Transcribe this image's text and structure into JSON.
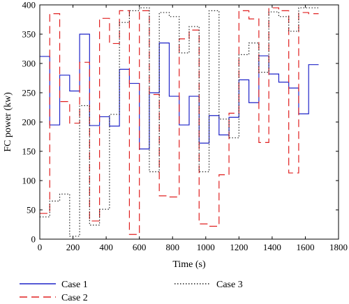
{
  "chart_data": {
    "type": "line",
    "title": "",
    "xlabel": "Time (s)",
    "ylabel": "FC power (kw)",
    "xlim": [
      0,
      1800
    ],
    "ylim": [
      0,
      400
    ],
    "xticks": [
      0,
      200,
      400,
      600,
      800,
      1000,
      1200,
      1400,
      1600,
      1800
    ],
    "yticks": [
      0,
      50,
      100,
      150,
      200,
      250,
      300,
      350,
      400
    ],
    "grid": false,
    "legend_position": "bottom",
    "series": [
      {
        "name": "Case 1",
        "color": "#1f24c8",
        "style": "solid",
        "x": [
          0,
          60,
          60,
          120,
          120,
          180,
          180,
          240,
          240,
          300,
          300,
          360,
          360,
          420,
          420,
          480,
          480,
          540,
          540,
          600,
          600,
          660,
          660,
          720,
          720,
          780,
          780,
          840,
          840,
          900,
          900,
          960,
          960,
          1020,
          1020,
          1080,
          1080,
          1140,
          1140,
          1200,
          1200,
          1260,
          1260,
          1320,
          1320,
          1380,
          1380,
          1440,
          1440,
          1500,
          1500,
          1560,
          1560,
          1620,
          1620,
          1680
        ],
        "y": [
          312,
          312,
          195,
          195,
          280,
          280,
          253,
          253,
          350,
          350,
          194,
          194,
          209,
          209,
          193,
          193,
          290,
          290,
          266,
          266,
          154,
          154,
          250,
          250,
          335,
          335,
          244,
          244,
          195,
          195,
          244,
          244,
          164,
          164,
          211,
          211,
          178,
          178,
          208,
          208,
          272,
          272,
          233,
          233,
          313,
          313,
          282,
          282,
          268,
          268,
          258,
          258,
          214,
          214,
          298,
          298
        ]
      },
      {
        "name": "Case 2",
        "color": "#e02020",
        "style": "dashed",
        "x": [
          0,
          60,
          60,
          120,
          120,
          180,
          180,
          240,
          240,
          300,
          300,
          360,
          360,
          420,
          420,
          480,
          480,
          540,
          540,
          600,
          600,
          660,
          660,
          720,
          720,
          780,
          780,
          840,
          840,
          900,
          900,
          960,
          960,
          1020,
          1020,
          1080,
          1080,
          1140,
          1140,
          1200,
          1200,
          1260,
          1260,
          1320,
          1320,
          1380,
          1380,
          1440,
          1440,
          1500,
          1500,
          1560,
          1560,
          1620,
          1620,
          1680
        ],
        "y": [
          44,
          44,
          385,
          385,
          235,
          235,
          198,
          198,
          302,
          302,
          31,
          31,
          377,
          377,
          334,
          334,
          390,
          390,
          8,
          8,
          390,
          390,
          247,
          247,
          74,
          74,
          72,
          72,
          342,
          342,
          357,
          357,
          26,
          26,
          22,
          22,
          110,
          110,
          215,
          215,
          390,
          390,
          376,
          376,
          165,
          165,
          395,
          395,
          390,
          390,
          113,
          113,
          387,
          387,
          385,
          385
        ]
      },
      {
        "name": "Case 3",
        "color": "#222222",
        "style": "dotted",
        "x": [
          0,
          60,
          60,
          120,
          120,
          180,
          180,
          240,
          240,
          300,
          300,
          360,
          360,
          420,
          420,
          480,
          480,
          540,
          540,
          600,
          600,
          660,
          660,
          720,
          720,
          780,
          780,
          840,
          840,
          900,
          900,
          960,
          960,
          1020,
          1020,
          1080,
          1080,
          1140,
          1140,
          1200,
          1200,
          1260,
          1260,
          1320,
          1320,
          1380,
          1380,
          1440,
          1440,
          1500,
          1500,
          1560,
          1560,
          1620,
          1620,
          1680
        ],
        "y": [
          38,
          38,
          65,
          65,
          77,
          77,
          5,
          5,
          228,
          228,
          24,
          24,
          51,
          51,
          213,
          213,
          370,
          370,
          390,
          390,
          395,
          395,
          115,
          115,
          387,
          387,
          380,
          380,
          318,
          318,
          363,
          363,
          115,
          115,
          390,
          390,
          205,
          205,
          173,
          173,
          315,
          315,
          335,
          335,
          285,
          285,
          388,
          388,
          380,
          380,
          355,
          355,
          395,
          395,
          395,
          395
        ]
      }
    ]
  }
}
